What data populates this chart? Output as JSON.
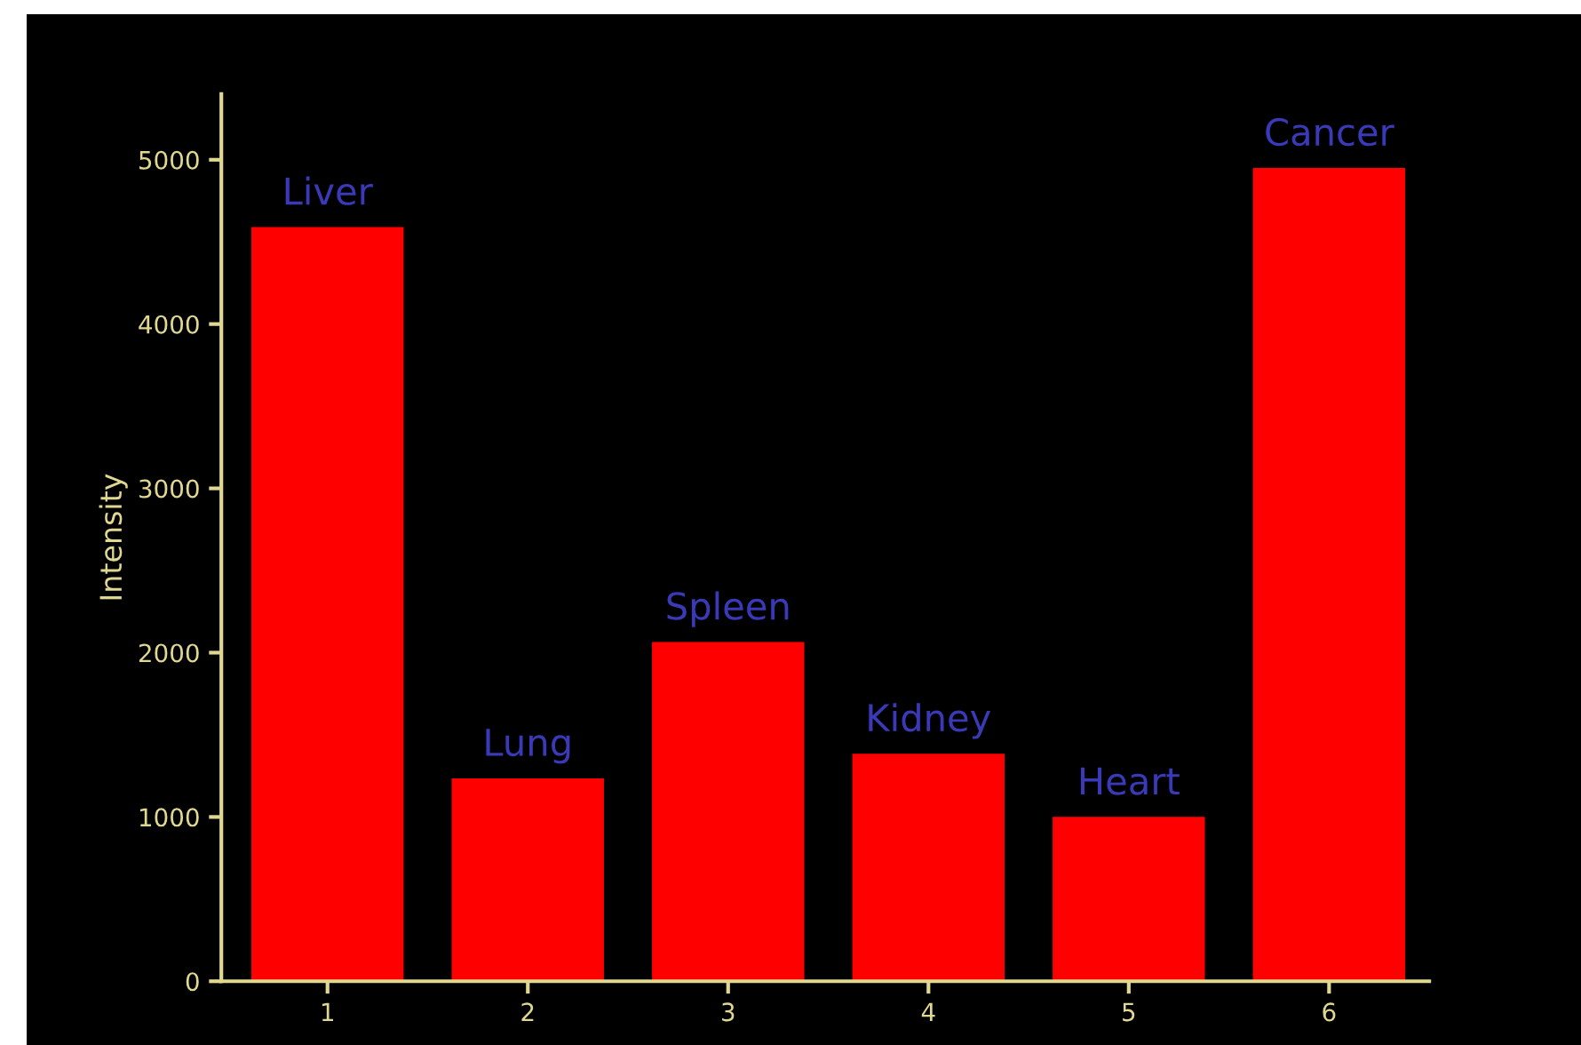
{
  "chart_data": {
    "type": "bar",
    "ylabel": "Intensity",
    "categories": [
      "1",
      "2",
      "3",
      "4",
      "5",
      "6"
    ],
    "values": [
      4590,
      1235,
      2065,
      1385,
      1000,
      4950
    ],
    "color": "#ff0000",
    "ylim": [
      0,
      5400
    ],
    "yticks": [
      0,
      1000,
      2000,
      3000,
      4000,
      5000
    ],
    "grid": false,
    "legend": false,
    "annotations": [
      {
        "text": "Liver",
        "x": "1",
        "y": 4590
      },
      {
        "text": "Lung",
        "x": "2",
        "y": 1235
      },
      {
        "text": "Spleen",
        "x": "3",
        "y": 2065
      },
      {
        "text": "Kidney",
        "x": "4",
        "y": 1385
      },
      {
        "text": "Heart",
        "x": "5",
        "y": 1000
      },
      {
        "text": "Cancer",
        "x": "6",
        "y": 4950
      }
    ]
  }
}
